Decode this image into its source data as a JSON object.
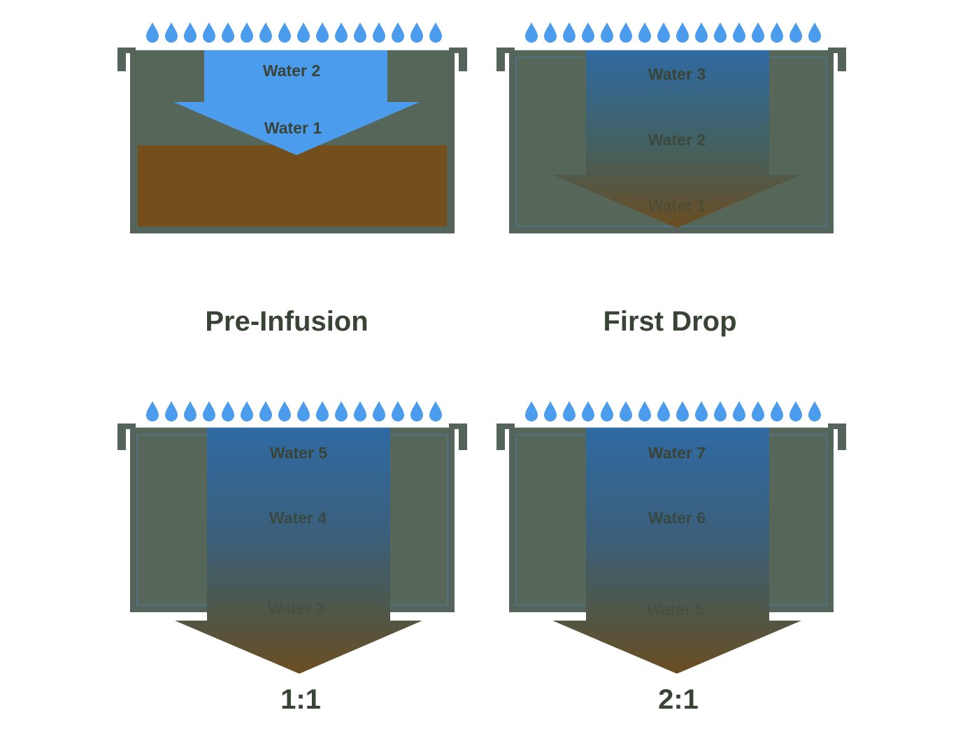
{
  "colors": {
    "basket_wall": "#55645a",
    "basket_fill": "#566658",
    "coffee_bed": "#744e1b",
    "water_fresh": "#4b9ced",
    "water_blue_top": "#2f6aa3",
    "water_brown_bottom": "#6b4d22",
    "label_dark": "#3a4436",
    "drop_blue": "#4b9ced",
    "rim_line": "#cfe3f5"
  },
  "icons": {
    "drop": "water-drop-icon"
  },
  "panels": [
    {
      "id": "pre-infusion",
      "caption": "Pre-Infusion",
      "waters": [
        "Water 2",
        "Water 1"
      ],
      "drop_count": 16
    },
    {
      "id": "first-drop",
      "caption": "First Drop",
      "waters": [
        "Water 3",
        "Water 2",
        "Water 1"
      ],
      "drop_count": 16
    },
    {
      "id": "ratio-1-1",
      "caption": "1:1",
      "waters": [
        "Water 5",
        "Water 4",
        "Water 3"
      ],
      "drop_count": 16
    },
    {
      "id": "ratio-2-1",
      "caption": "2:1",
      "waters": [
        "Water 7",
        "Water 6",
        "Water 5"
      ],
      "drop_count": 16
    }
  ]
}
